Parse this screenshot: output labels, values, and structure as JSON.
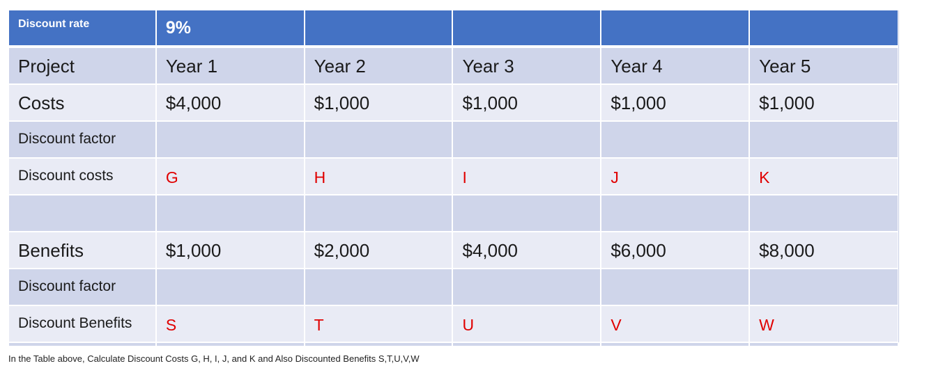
{
  "table": {
    "header": {
      "label": "Discount rate",
      "rate": "9%",
      "empty": [
        "",
        "",
        "",
        ""
      ]
    },
    "columns": [
      "Project",
      "Year 1",
      "Year 2",
      "Year 3",
      "Year 4",
      "Year 5"
    ],
    "rows": [
      {
        "label": "Costs",
        "values": [
          "$4,000",
          "$1,000",
          "$1,000",
          "$1,000",
          "$1,000"
        ]
      },
      {
        "label": "Discount factor",
        "values": [
          "",
          "",
          "",
          "",
          ""
        ]
      },
      {
        "label": "Discount costs",
        "values": [
          "G",
          "H",
          "I",
          "J",
          "K"
        ]
      },
      {
        "label": "",
        "values": [
          "",
          "",
          "",
          "",
          ""
        ]
      },
      {
        "label": "Benefits",
        "values": [
          "$1,000",
          "$2,000",
          "$4,000",
          "$6,000",
          "$8,000"
        ]
      },
      {
        "label": "Discount factor",
        "values": [
          "",
          "",
          "",
          "",
          ""
        ]
      },
      {
        "label": "Discount Benefits",
        "values": [
          "S",
          "T",
          "U",
          "V",
          "W"
        ]
      }
    ]
  },
  "colors": {
    "header_blue": "#4472C4",
    "band_dark": "#CFD5EA",
    "band_light": "#E9EBF5",
    "placeholder_red": "#E00000"
  },
  "question": "In the Table above, Calculate  Discount Costs G, H, I, J, and K  and Also Discounted Benefits  S,T,U,V,W"
}
